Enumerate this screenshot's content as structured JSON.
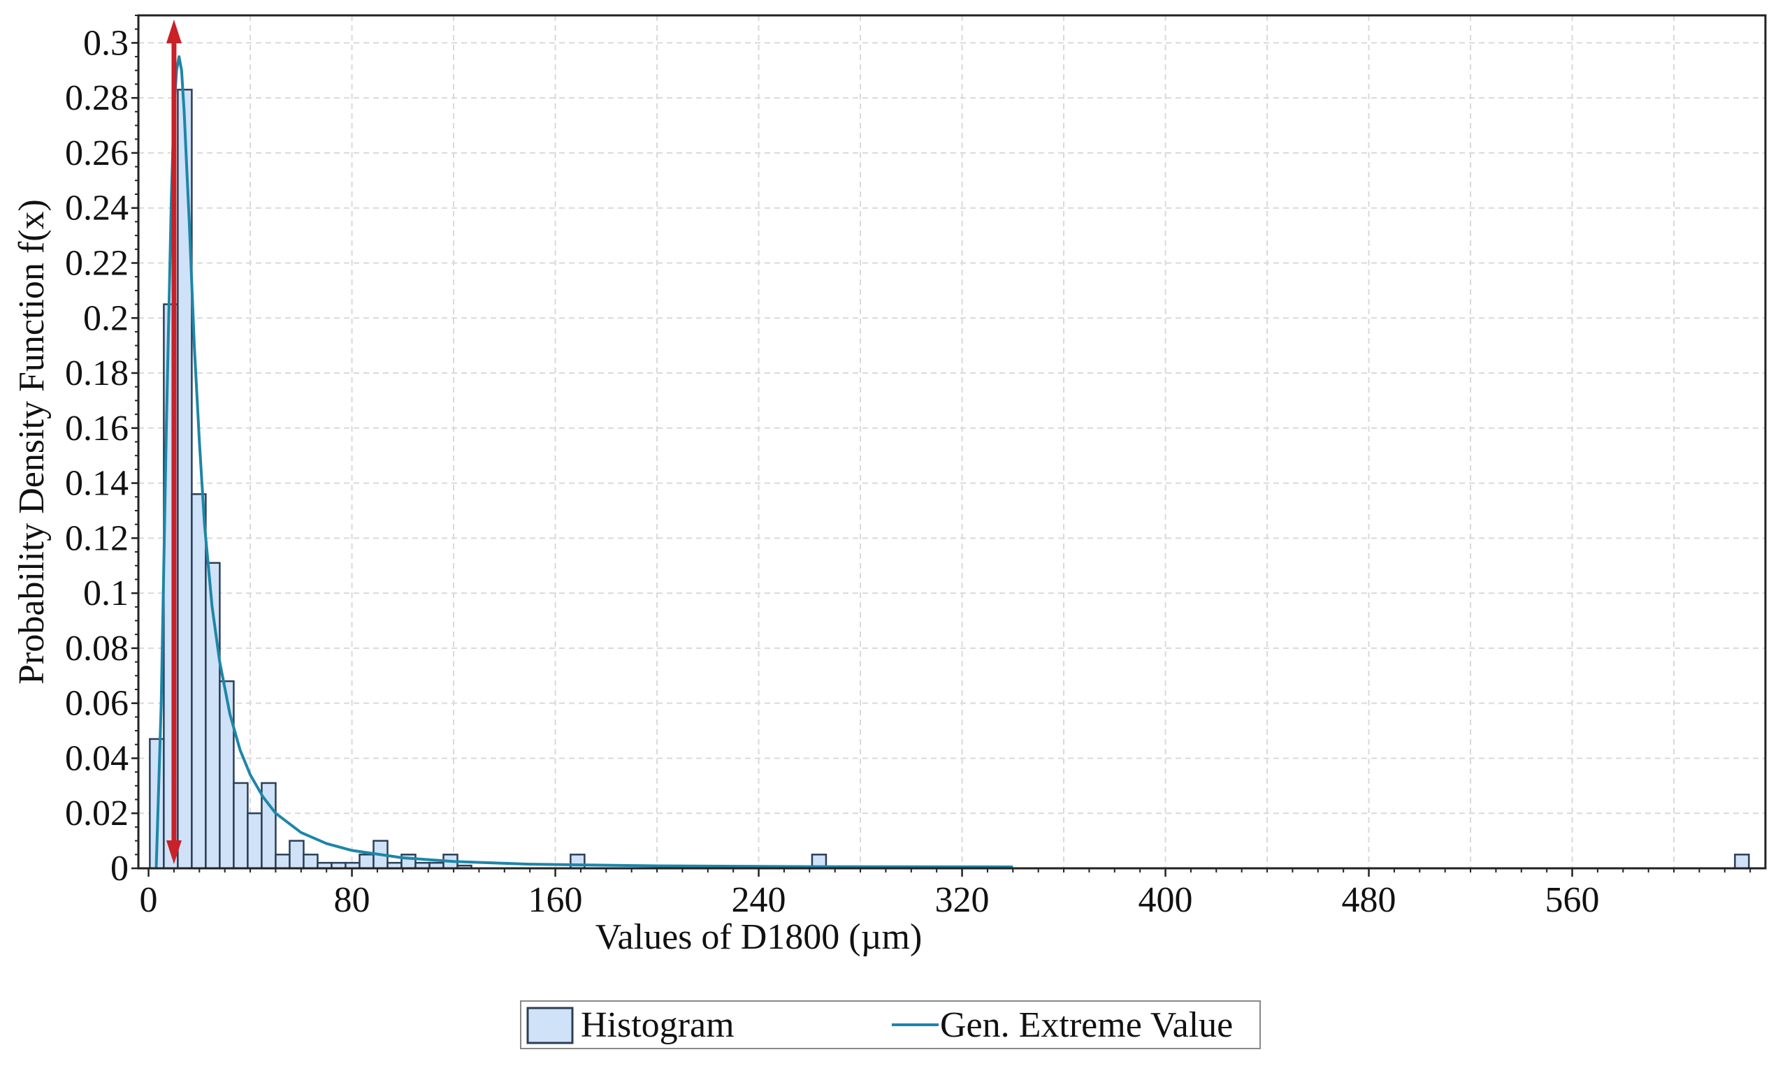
{
  "chart_data": {
    "type": "bar",
    "title": "",
    "xlabel": "Values of D1800 (µm)",
    "ylabel": "Probability Density Function f(x)",
    "xlim": [
      -4,
      636
    ],
    "ylim": [
      0,
      0.31
    ],
    "x_ticks": [
      0,
      80,
      160,
      240,
      320,
      400,
      480,
      560
    ],
    "y_ticks": [
      0,
      0.02,
      0.04,
      0.06,
      0.08,
      0.1,
      0.12,
      0.14,
      0.16,
      0.18,
      0.2,
      0.22,
      0.24,
      0.26,
      0.28,
      0.3
    ],
    "y_tick_labels": [
      "0",
      "0.02",
      "0.04",
      "0.06",
      "0.08",
      "0.1",
      "0.12",
      "0.14",
      "0.16",
      "0.18",
      "0.2",
      "0.22",
      "0.24",
      "0.26",
      "0.28",
      "0.3"
    ],
    "grid": true,
    "legend_placement": "bottom-center",
    "histogram": {
      "name": "Histogram",
      "bin_width": 5.5,
      "bins": [
        {
          "x0": 0.5,
          "value": 0.047
        },
        {
          "x0": 6,
          "value": 0.205
        },
        {
          "x0": 11.5,
          "value": 0.283
        },
        {
          "x0": 17,
          "value": 0.136
        },
        {
          "x0": 22.5,
          "value": 0.111
        },
        {
          "x0": 28,
          "value": 0.068
        },
        {
          "x0": 33.5,
          "value": 0.031
        },
        {
          "x0": 39,
          "value": 0.02
        },
        {
          "x0": 44.5,
          "value": 0.031
        },
        {
          "x0": 50,
          "value": 0.005
        },
        {
          "x0": 55.5,
          "value": 0.01
        },
        {
          "x0": 61,
          "value": 0.005
        },
        {
          "x0": 66.5,
          "value": 0.002
        },
        {
          "x0": 72,
          "value": 0.002
        },
        {
          "x0": 77.5,
          "value": 0.002
        },
        {
          "x0": 83,
          "value": 0.005
        },
        {
          "x0": 88.5,
          "value": 0.01
        },
        {
          "x0": 94,
          "value": 0.002
        },
        {
          "x0": 99.5,
          "value": 0.005
        },
        {
          "x0": 105,
          "value": 0.002
        },
        {
          "x0": 110.5,
          "value": 0.002
        },
        {
          "x0": 116,
          "value": 0.005
        },
        {
          "x0": 121.5,
          "value": 0.001
        },
        {
          "x0": 166,
          "value": 0.005
        },
        {
          "x0": 261,
          "value": 0.005
        },
        {
          "x0": 624,
          "value": 0.005
        }
      ]
    },
    "series": [
      {
        "name": "Gen. Extreme Value",
        "x": [
          3,
          5,
          7,
          9,
          10,
          11,
          12,
          13,
          14,
          15,
          16,
          18,
          20,
          22,
          25,
          28,
          32,
          36,
          40,
          45,
          50,
          60,
          70,
          80,
          100,
          120,
          150,
          200,
          260,
          340
        ],
        "y": [
          0.0,
          0.06,
          0.16,
          0.245,
          0.275,
          0.29,
          0.295,
          0.29,
          0.275,
          0.255,
          0.235,
          0.19,
          0.155,
          0.125,
          0.095,
          0.075,
          0.056,
          0.043,
          0.034,
          0.026,
          0.02,
          0.013,
          0.009,
          0.0065,
          0.0038,
          0.0025,
          0.0015,
          0.0009,
          0.0006,
          0.0005
        ]
      }
    ],
    "annotations": [
      {
        "type": "double-arrow",
        "x": 10,
        "y_from": 0,
        "y_to": 0.31
      }
    ],
    "colors": {
      "histogram_fill": "#cfe2f8",
      "histogram_edge": "#2b3f57",
      "curve": "#1d86a8",
      "arrow": "#c82128",
      "grid": "#d9d9d9"
    }
  }
}
